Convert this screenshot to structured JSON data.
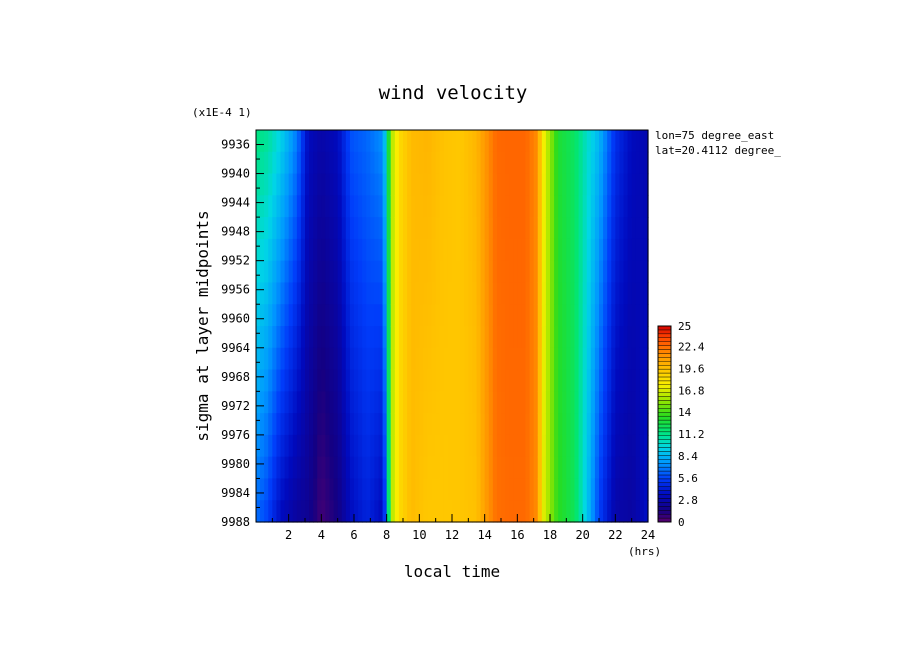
{
  "chart_data": {
    "type": "heatmap",
    "title": "wind velocity",
    "xlabel": "local time",
    "x_unit": "(hrs)",
    "ylabel": "sigma at layer midpoints",
    "y_scale_note": "(x1E-4 1)",
    "annotations": [
      "lon=75 degree_east",
      "lat=20.4112 degree_"
    ],
    "xlim": [
      0,
      24
    ],
    "ylim": [
      9934,
      9988
    ],
    "x_ticks": [
      "2",
      "4",
      "6",
      "8",
      "10",
      "12",
      "14",
      "16",
      "18",
      "20",
      "22",
      "24"
    ],
    "y_ticks": [
      "9936",
      "9940",
      "9944",
      "9948",
      "9952",
      "9956",
      "9960",
      "9964",
      "9968",
      "9972",
      "9976",
      "9980",
      "9984",
      "9988"
    ],
    "colorbar": {
      "range": [
        0,
        25
      ],
      "tick_labels": [
        "0",
        "2.8",
        "5.6",
        "8.4",
        "11.2",
        "14",
        "16.8",
        "19.6",
        "22.4",
        "25"
      ],
      "colormap": "rainbow"
    },
    "time_profile": {
      "x": [
        0,
        0.7,
        1.5,
        2.5,
        3.2,
        4,
        5,
        5.8,
        6.8,
        7.8,
        8.3,
        8.8,
        9.5,
        10.5,
        11.5,
        12.5,
        13.5,
        14.7,
        15.5,
        16.5,
        17.2,
        17.6,
        18.5,
        19.5,
        20.3,
        21,
        22,
        23,
        24
      ],
      "top": [
        11.5,
        11.0,
        9.5,
        7.0,
        3.5,
        2.8,
        3.5,
        6.0,
        6.5,
        7.5,
        16.0,
        18.5,
        19.8,
        20.0,
        19.5,
        19.3,
        20.0,
        22.5,
        22.6,
        22.6,
        21.5,
        17.5,
        13.0,
        12.0,
        10.0,
        8.5,
        5.0,
        3.5,
        3.0
      ],
      "bottom": [
        6.5,
        5.5,
        3.5,
        2.3,
        2.0,
        0.5,
        1.5,
        3.5,
        4.5,
        3.3,
        16.0,
        18.5,
        19.8,
        19.3,
        19.3,
        19.4,
        19.6,
        22.3,
        22.5,
        22.5,
        21.5,
        17.0,
        13.5,
        12.2,
        8.8,
        5.5,
        2.8,
        2.5,
        3.8
      ]
    },
    "grid": false
  }
}
